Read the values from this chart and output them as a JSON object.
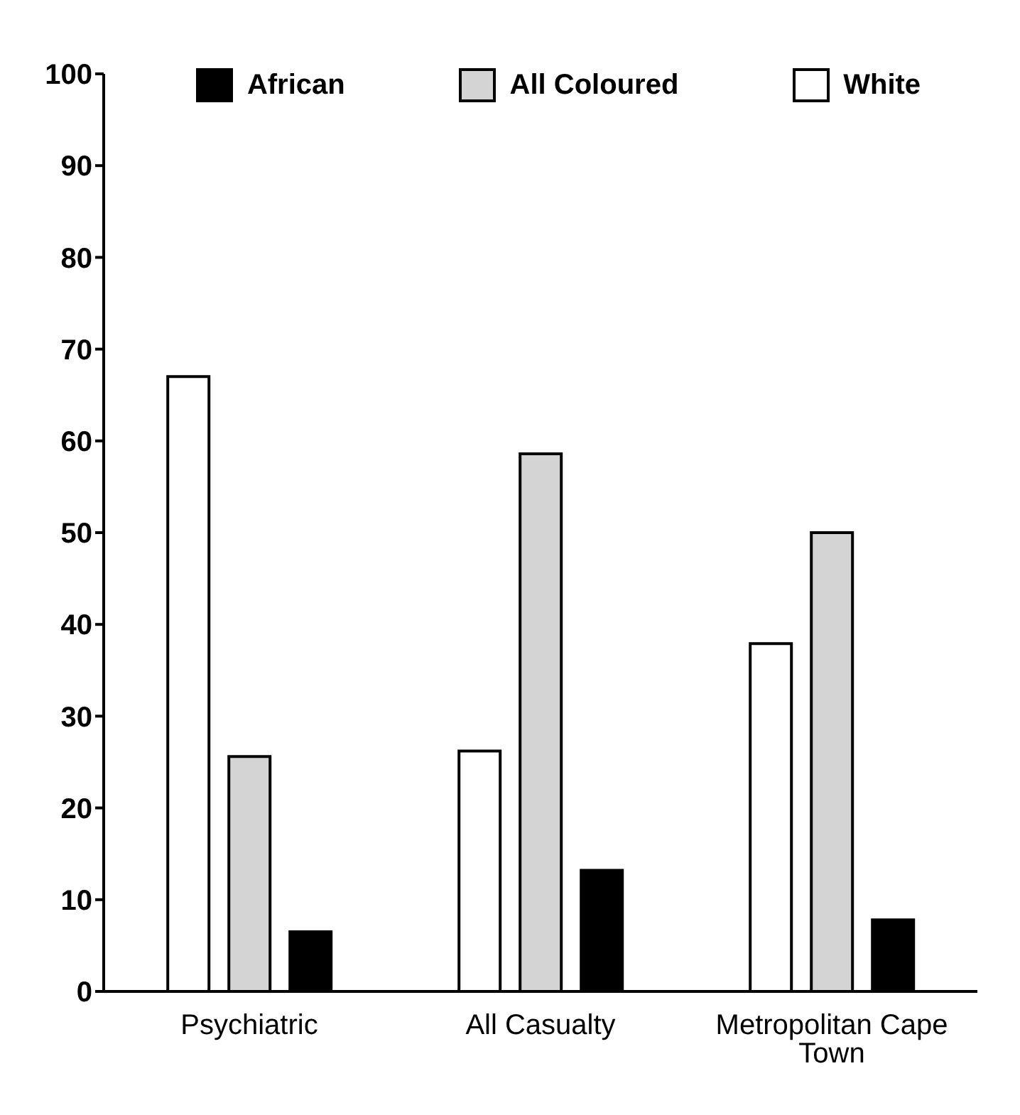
{
  "chart_data": {
    "type": "bar",
    "categories": [
      "Psychiatric",
      "All Casualty",
      "Metropolitan Cape Town"
    ],
    "series": [
      {
        "name": "White",
        "color": "#ffffff",
        "values": [
          67,
          26.2,
          37.9
        ]
      },
      {
        "name": "All Coloured",
        "color": "#d4d4d4",
        "values": [
          25.6,
          58.6,
          50
        ]
      },
      {
        "name": "African",
        "color": "#000000",
        "values": [
          6.5,
          13.2,
          7.8
        ]
      }
    ],
    "ylim": [
      0,
      100
    ],
    "yticks": [
      0,
      10,
      20,
      30,
      40,
      50,
      60,
      70,
      80,
      90,
      100
    ],
    "grid": false,
    "legend": "top"
  }
}
